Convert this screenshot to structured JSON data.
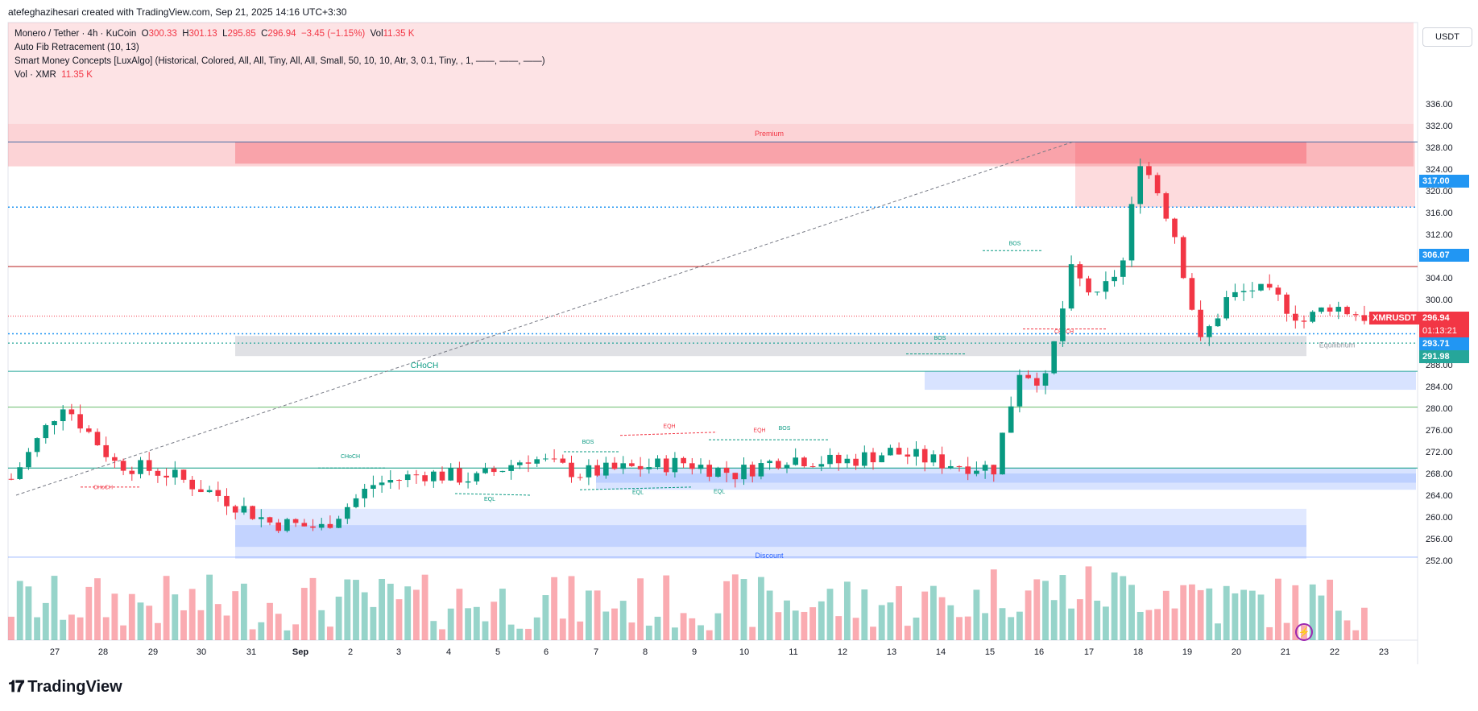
{
  "header": {
    "text": "atefeghazihesari created with TradingView.com, Sep 21, 2025 14:16 UTC+3:30"
  },
  "legend": {
    "symbol": "Monero / Tether · 4h · KuCoin",
    "o_label": "O",
    "o_value": "300.33",
    "h_label": "H",
    "h_value": "301.13",
    "l_label": "L",
    "l_value": "295.85",
    "c_label": "C",
    "c_value": "296.94",
    "change": "−3.45 (−1.15%)",
    "vol_label": "Vol",
    "vol_value": "11.35 K",
    "indicator1": "Auto Fib Retracement (10, 13)",
    "indicator2": "Smart Money Concepts [LuxAlgo] (Historical, Colored, All, All, Tiny, All, All, Small, 50, 10, 10, Atr, 3, 0.1, Tiny, , 1, ——, ——, ——)",
    "indicator3_label": "Vol · XMR",
    "indicator3_value": "11.35 K"
  },
  "currency": "USDT",
  "logo_text": "TradingView",
  "symbol_tag": "XMRUSDT",
  "countdown": "01:13:21",
  "colors": {
    "up": "#089981",
    "down": "#f23645",
    "blue": "#2962ff",
    "premium": "#f23645",
    "discount": "#2962ff"
  },
  "price_labels": [
    {
      "value": "317.00",
      "color": "#2196f3"
    },
    {
      "value": "306.07",
      "color": "#2196f3"
    },
    {
      "value": "296.94",
      "color": "#f23645"
    },
    {
      "value": "293.71",
      "color": "#2196f3"
    },
    {
      "value": "291.98",
      "color": "#26a69a"
    }
  ],
  "zone_labels": {
    "premium": "Premium",
    "discount": "Discount",
    "equilibrium": "Equilibrium"
  },
  "smc_labels": [
    "CHoCH",
    "CHoCH",
    "CHoCH",
    "CHoCH",
    "BOS",
    "BOS",
    "BOS",
    "BOS",
    "EQH",
    "EQH",
    "EQL",
    "EQL",
    "EQL"
  ],
  "chart_data": {
    "type": "candlestick",
    "y_ticks": [
      252,
      256,
      260,
      264,
      268,
      272,
      276,
      280,
      284,
      288,
      292,
      296,
      300,
      304,
      308,
      312,
      316,
      320,
      324,
      328,
      332,
      336
    ],
    "x_ticks": [
      "27",
      "28",
      "29",
      "30",
      "31",
      "Sep",
      "2",
      "3",
      "4",
      "5",
      "6",
      "7",
      "8",
      "9",
      "10",
      "11",
      "12",
      "13",
      "14",
      "15",
      "16",
      "17",
      "18",
      "19",
      "20",
      "21",
      "22",
      "23"
    ],
    "close_points": [
      [
        0,
        267
      ],
      [
        6,
        281
      ],
      [
        12,
        270
      ],
      [
        18,
        268
      ],
      [
        24,
        264
      ],
      [
        30,
        259
      ],
      [
        36,
        258
      ],
      [
        42,
        266
      ],
      [
        48,
        268
      ],
      [
        54,
        267
      ],
      [
        60,
        271
      ],
      [
        66,
        268
      ],
      [
        72,
        269
      ],
      [
        78,
        270
      ],
      [
        84,
        268
      ],
      [
        90,
        271
      ],
      [
        96,
        270
      ],
      [
        102,
        272
      ],
      [
        108,
        270
      ],
      [
        114,
        269
      ],
      [
        117,
        287
      ],
      [
        120,
        285
      ],
      [
        123,
        305
      ],
      [
        126,
        300
      ],
      [
        129,
        307
      ],
      [
        131,
        326
      ],
      [
        133,
        320
      ],
      [
        135,
        312
      ],
      [
        138,
        292
      ],
      [
        141,
        300
      ],
      [
        144,
        302
      ],
      [
        147,
        300
      ],
      [
        150,
        296
      ],
      [
        153,
        299
      ],
      [
        157,
        296.94
      ]
    ],
    "levels": [
      317.0,
      306.07,
      293.71,
      291.98
    ]
  }
}
